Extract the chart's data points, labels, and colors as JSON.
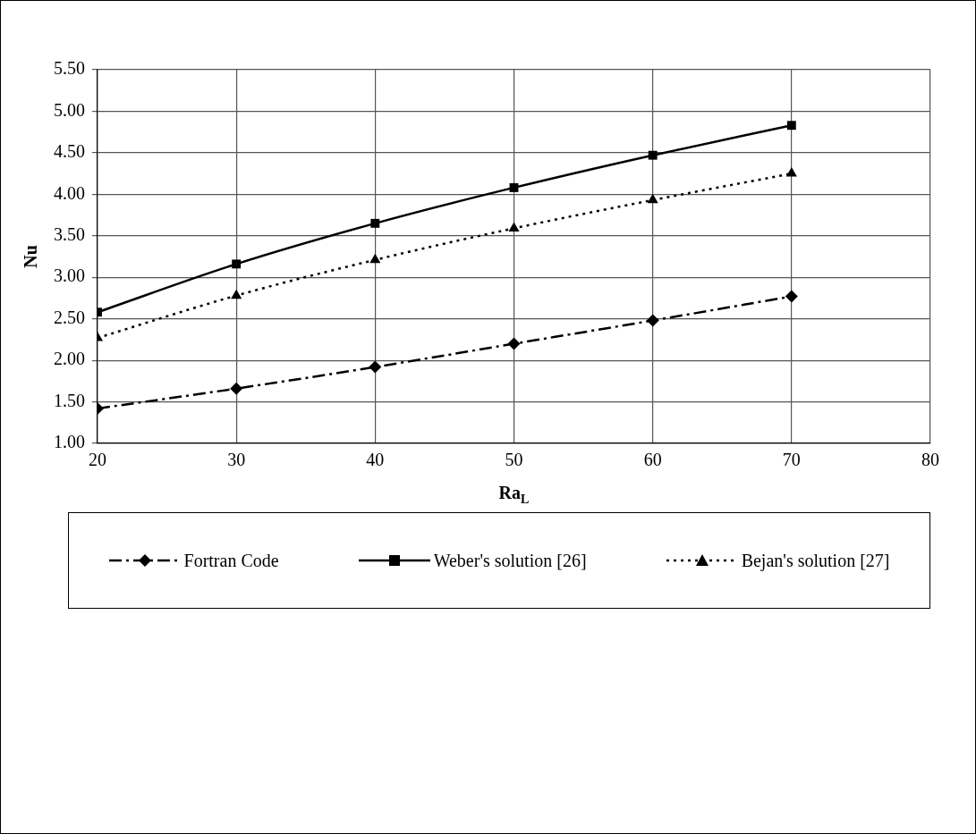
{
  "chart_data": {
    "type": "line",
    "xlabel": "Ra$_{L}$",
    "ylabel": "Nu",
    "x": [
      20,
      30,
      40,
      50,
      60,
      70
    ],
    "xlim": [
      20,
      80
    ],
    "xticks": [
      20,
      30,
      40,
      50,
      60,
      70,
      80
    ],
    "ylim": [
      1,
      5.5
    ],
    "yticks": [
      {
        "value": 1,
        "label": "1.00"
      },
      {
        "value": 1.5,
        "label": "1.50"
      },
      {
        "value": 2,
        "label": "2.00"
      },
      {
        "value": 2.5,
        "label": "2.50"
      },
      {
        "value": 3,
        "label": "3.00"
      },
      {
        "value": 3.5,
        "label": "3.50"
      },
      {
        "value": 4,
        "label": "4.00"
      },
      {
        "value": 4.5,
        "label": "4.50"
      },
      {
        "value": 5,
        "label": "5.00"
      },
      {
        "value": 5.5,
        "label": "5.50"
      }
    ],
    "grid": true,
    "legend": "bottom",
    "series": [
      {
        "name": "Fortran Code",
        "color": "#000000",
        "marker": "diamond",
        "line_style": "dashed",
        "values": [
          1.42,
          1.66,
          1.92,
          2.2,
          2.48,
          2.77
        ]
      },
      {
        "name": "Weber's solution [26]",
        "color": "#000000",
        "marker": "square",
        "line_style": "solid",
        "values": [
          2.58,
          3.16,
          3.65,
          4.08,
          4.47,
          4.83
        ]
      },
      {
        "name": "Bejan's solution [27]",
        "color": "#000000",
        "marker": "triangle",
        "line_style": "dotted",
        "values": [
          2.27,
          2.78,
          3.21,
          3.59,
          3.93,
          4.25
        ]
      }
    ]
  }
}
